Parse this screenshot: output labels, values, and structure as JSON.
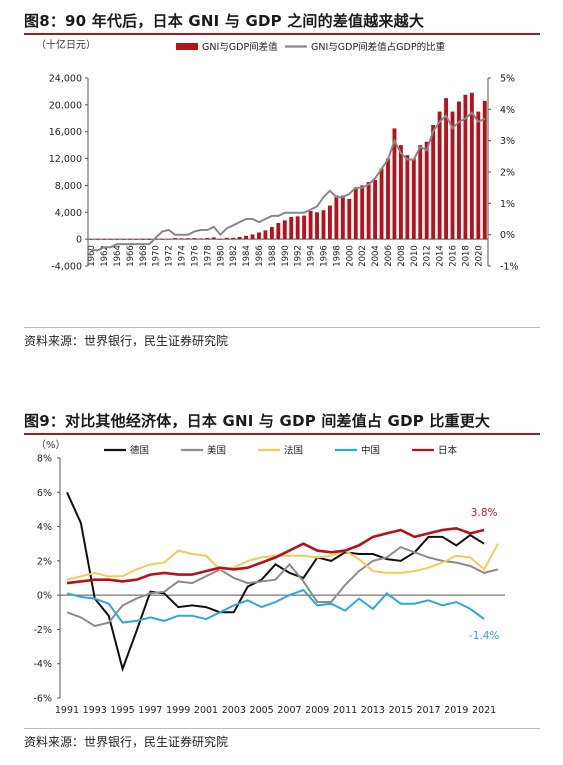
{
  "figure1": {
    "title": "图8：90 年代后，日本 GNI 与 GDP 之间的差值越来越大",
    "unit_label": "（十亿日元）",
    "source": "资料来源：世界银行，民生证券研究院"
  },
  "figure2": {
    "title": "图9：对比其他经济体，日本 GNI 与 GDP 间差值占 GDP 比重更大",
    "unit_label": "（%）",
    "source": "资料来源：世界银行，民生证券研究院"
  },
  "chart_data": [
    {
      "type": "bar+line",
      "x_tick_labels": [
        "1960",
        "1962",
        "1964",
        "1966",
        "1968",
        "1970",
        "1972",
        "1974",
        "1976",
        "1978",
        "1980",
        "1982",
        "1984",
        "1986",
        "1988",
        "1990",
        "1992",
        "1994",
        "1996",
        "1998",
        "2000",
        "2002",
        "2004",
        "2006",
        "2008",
        "2010",
        "2012",
        "2014",
        "2016",
        "2018",
        "2020"
      ],
      "x": [
        1960,
        1961,
        1962,
        1963,
        1964,
        1965,
        1966,
        1967,
        1968,
        1969,
        1970,
        1971,
        1972,
        1973,
        1974,
        1975,
        1976,
        1977,
        1978,
        1979,
        1980,
        1981,
        1982,
        1983,
        1984,
        1985,
        1986,
        1987,
        1988,
        1989,
        1990,
        1991,
        1992,
        1993,
        1994,
        1995,
        1996,
        1997,
        1998,
        1999,
        2000,
        2001,
        2002,
        2003,
        2004,
        2005,
        2006,
        2007,
        2008,
        2009,
        2010,
        2011,
        2012,
        2013,
        2014,
        2015,
        2016,
        2017,
        2018,
        2019,
        2020,
        2021
      ],
      "series": [
        {
          "name": "GNI与GDP间差值",
          "axis": "left",
          "kind": "bar",
          "color": "#b5121b",
          "values": [
            -50,
            -60,
            -60,
            -70,
            -80,
            -80,
            -90,
            -90,
            -100,
            -110,
            -90,
            0,
            20,
            150,
            120,
            130,
            160,
            110,
            180,
            260,
            0,
            200,
            200,
            320,
            500,
            700,
            1000,
            1300,
            1800,
            2400,
            2800,
            3300,
            3400,
            3500,
            4200,
            4000,
            4300,
            5000,
            6500,
            6500,
            6000,
            7500,
            8000,
            8500,
            8800,
            10500,
            12000,
            16500,
            14000,
            12500,
            12000,
            14000,
            14500,
            17000,
            19000,
            21000,
            19000,
            20500,
            21500,
            21800,
            19000,
            20600
          ]
        },
        {
          "name": "GNI与GDP间差值占GDP的比重",
          "axis": "right",
          "kind": "line",
          "color": "#888888",
          "values": [
            -0.5,
            -0.5,
            -0.4,
            -0.4,
            -0.3,
            -0.3,
            -0.3,
            -0.3,
            -0.3,
            -0.3,
            -0.1,
            0.1,
            0.15,
            0.0,
            0.0,
            0.0,
            0.1,
            0.15,
            0.15,
            0.25,
            0.0,
            0.2,
            0.3,
            0.4,
            0.5,
            0.5,
            0.4,
            0.5,
            0.6,
            0.6,
            0.7,
            0.7,
            0.7,
            0.7,
            0.8,
            0.9,
            1.2,
            1.4,
            1.2,
            1.2,
            1.3,
            1.5,
            1.5,
            1.6,
            1.8,
            2.1,
            2.4,
            3.0,
            2.6,
            2.4,
            2.4,
            2.8,
            2.7,
            3.3,
            3.6,
            3.8,
            3.4,
            3.6,
            3.7,
            3.9,
            3.6,
            3.7
          ]
        }
      ],
      "y_left": {
        "ticks": [
          "-4,000",
          "0",
          "4,000",
          "8,000",
          "12,000",
          "16,000",
          "20,000",
          "24,000"
        ],
        "range": [
          -4000,
          24000
        ]
      },
      "y_right": {
        "ticks": [
          "-1%",
          "0%",
          "1%",
          "2%",
          "3%",
          "4%",
          "5%"
        ],
        "range": [
          -1,
          5
        ]
      },
      "legend_position": "top"
    },
    {
      "type": "line",
      "x": [
        1991,
        1992,
        1993,
        1994,
        1995,
        1996,
        1997,
        1998,
        1999,
        2000,
        2001,
        2002,
        2003,
        2004,
        2005,
        2006,
        2007,
        2008,
        2009,
        2010,
        2011,
        2012,
        2013,
        2014,
        2015,
        2016,
        2017,
        2018,
        2019,
        2020,
        2021,
        2022
      ],
      "x_tick_labels": [
        "1991",
        "1993",
        "1995",
        "1997",
        "1999",
        "2001",
        "2003",
        "2005",
        "2007",
        "2009",
        "2011",
        "2013",
        "2015",
        "2017",
        "2019",
        "2021"
      ],
      "series": [
        {
          "name": "德国",
          "color": "#111111",
          "values": [
            6.0,
            4.2,
            -0.2,
            -1.2,
            -4.3,
            -2.1,
            0.2,
            0.1,
            -0.7,
            -0.6,
            -0.7,
            -1.0,
            -1.0,
            0.5,
            0.9,
            1.8,
            1.3,
            1.0,
            2.2,
            2.0,
            2.5,
            2.4,
            2.4,
            2.1,
            2.0,
            2.5,
            3.4,
            3.4,
            2.9,
            3.5,
            3.0,
            null
          ]
        },
        {
          "name": "美国",
          "color": "#8c8c8c",
          "values": [
            -1.0,
            -1.3,
            -1.8,
            -1.6,
            -0.6,
            -0.2,
            0.1,
            0.2,
            0.8,
            0.7,
            1.1,
            1.5,
            1.0,
            0.7,
            0.8,
            0.9,
            1.8,
            0.8,
            -0.4,
            -0.4,
            0.6,
            1.4,
            2.0,
            2.2,
            2.8,
            2.5,
            2.2,
            2.0,
            1.9,
            1.7,
            1.3,
            1.5
          ]
        },
        {
          "name": "法国",
          "color": "#f2cc57",
          "values": [
            0.9,
            1.1,
            1.3,
            1.1,
            1.1,
            1.5,
            1.8,
            1.9,
            2.6,
            2.4,
            2.3,
            1.5,
            1.6,
            2.0,
            2.2,
            2.3,
            2.3,
            2.3,
            2.2,
            2.3,
            2.6,
            2.1,
            1.4,
            1.3,
            1.3,
            1.4,
            1.6,
            1.9,
            2.3,
            2.2,
            1.5,
            3.0
          ]
        },
        {
          "name": "中国",
          "color": "#2ca9df",
          "values": [
            0.1,
            -0.1,
            -0.2,
            -0.5,
            -1.6,
            -1.5,
            -1.3,
            -1.5,
            -1.2,
            -1.2,
            -1.4,
            -1.0,
            -0.6,
            -0.3,
            -0.7,
            -0.4,
            0.0,
            0.3,
            -0.6,
            -0.5,
            -0.9,
            -0.2,
            -0.8,
            0.1,
            -0.5,
            -0.5,
            -0.3,
            -0.6,
            -0.4,
            -0.8,
            -1.4,
            null
          ]
        },
        {
          "name": "日本",
          "color": "#b5121b",
          "values": [
            0.7,
            0.8,
            0.9,
            0.9,
            0.8,
            0.9,
            1.2,
            1.3,
            1.2,
            1.2,
            1.4,
            1.6,
            1.5,
            1.6,
            1.9,
            2.2,
            2.6,
            3.0,
            2.6,
            2.5,
            2.6,
            2.9,
            3.4,
            3.6,
            3.8,
            3.4,
            3.6,
            3.8,
            3.9,
            3.6,
            3.8,
            null
          ]
        }
      ],
      "annotations": [
        {
          "text": "3.8%",
          "series": "日本",
          "color": "#c8202a"
        },
        {
          "text": "-1.4%",
          "series": "中国",
          "color": "#2ca9df"
        }
      ],
      "y": {
        "ticks": [
          "-6%",
          "-4%",
          "-2%",
          "0%",
          "2%",
          "4%",
          "6%",
          "8%"
        ],
        "range": [
          -6,
          8
        ]
      },
      "legend_position": "top"
    }
  ]
}
